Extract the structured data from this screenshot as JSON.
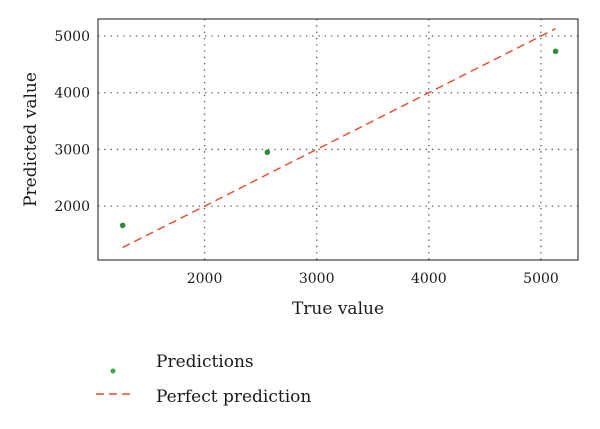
{
  "chart_data": {
    "type": "scatter",
    "xlabel": "True value",
    "ylabel": "Predicted value",
    "xlim": [
      1050,
      5330
    ],
    "ylim": [
      1050,
      5300
    ],
    "xticks": [
      2000,
      3000,
      4000,
      5000
    ],
    "yticks": [
      2000,
      3000,
      4000,
      5000
    ],
    "grid": true,
    "legend_position": "below",
    "series": [
      {
        "name": "Predictions",
        "kind": "scatter",
        "color": "#2e8b3a",
        "points": [
          {
            "x": 1270,
            "y": 1660
          },
          {
            "x": 2560,
            "y": 2950
          },
          {
            "x": 5130,
            "y": 4730
          }
        ]
      },
      {
        "name": "Perfect prediction",
        "kind": "dashed-line",
        "color": "#e8492a",
        "points": [
          {
            "x": 1270,
            "y": 1270
          },
          {
            "x": 5130,
            "y": 5130
          }
        ]
      }
    ]
  }
}
